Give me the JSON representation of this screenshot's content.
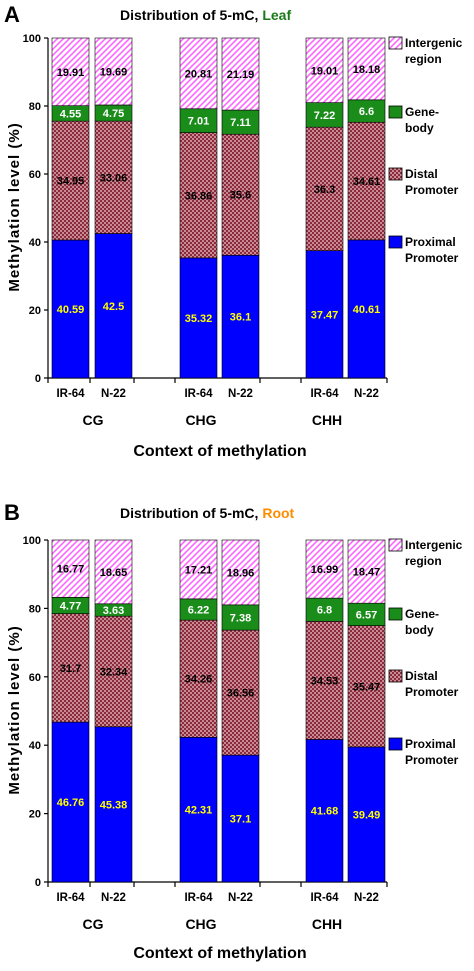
{
  "chart_data": [
    {
      "type": "bar",
      "panel": "A",
      "title_prefix": "Distribution of 5-mC, ",
      "title_tissue": "Leaf",
      "title_tissue_color": "#1a7a1a",
      "ylabel": "Methylation level (%)",
      "xlabel": "Context of methylation",
      "ylim": [
        0,
        100
      ],
      "yticks": [
        "0",
        "20",
        "40",
        "60",
        "80",
        "100"
      ],
      "contexts": [
        "CG",
        "CHG",
        "CHH"
      ],
      "categories": [
        "IR-64",
        "N-22",
        "IR-64",
        "N-22",
        "IR-64",
        "N-22"
      ],
      "series": [
        {
          "name": "Proximal Promoter",
          "values": [
            40.59,
            42.5,
            35.32,
            36.1,
            37.47,
            40.61
          ],
          "labels": [
            "40.59",
            "42.5",
            "35.32",
            "36.1",
            "37.47",
            "40.61"
          ]
        },
        {
          "name": "Distal Promoter",
          "values": [
            34.95,
            33.06,
            36.86,
            35.6,
            36.3,
            34.61
          ],
          "labels": [
            "34.95",
            "33.06",
            "36.86",
            "35.6",
            "36.3",
            "34.61"
          ]
        },
        {
          "name": "Gene-body",
          "values": [
            4.55,
            4.75,
            7.01,
            7.11,
            7.22,
            6.6
          ],
          "labels": [
            "4.55",
            "4.75",
            "7.01",
            "7.11",
            "7.22",
            "6.6"
          ]
        },
        {
          "name": "Intergenic region",
          "values": [
            19.91,
            19.69,
            20.81,
            21.19,
            19.01,
            18.18
          ],
          "labels": [
            "19.91",
            "19.69",
            "20.81",
            "21.19",
            "19.01",
            "18.18"
          ]
        }
      ],
      "legend": [
        {
          "key": "intergenic",
          "lines": [
            "Intergenic",
            "region"
          ]
        },
        {
          "key": "genebody",
          "lines": [
            "Gene-",
            "body"
          ]
        },
        {
          "key": "distal",
          "lines": [
            "Distal",
            "Promoter"
          ]
        },
        {
          "key": "proximal",
          "lines": [
            "Proximal",
            "Promoter"
          ]
        }
      ],
      "legend_placement": "right",
      "grid": false
    },
    {
      "type": "bar",
      "panel": "B",
      "title_prefix": "Distribution of 5-mC, ",
      "title_tissue": "Root",
      "title_tissue_color": "#ff8c00",
      "ylabel": "Methylation level (%)",
      "xlabel": "Context of methylation",
      "ylim": [
        0,
        100
      ],
      "yticks": [
        "0",
        "20",
        "40",
        "60",
        "80",
        "100"
      ],
      "contexts": [
        "CG",
        "CHG",
        "CHH"
      ],
      "categories": [
        "IR-64",
        "N-22",
        "IR-64",
        "N-22",
        "IR-64",
        "N-22"
      ],
      "series": [
        {
          "name": "Proximal Promoter",
          "values": [
            46.76,
            45.38,
            42.31,
            37.1,
            41.68,
            39.49
          ],
          "labels": [
            "46.76",
            "45.38",
            "42.31",
            "37.1",
            "41.68",
            "39.49"
          ]
        },
        {
          "name": "Distal Promoter",
          "values": [
            31.7,
            32.34,
            34.26,
            36.56,
            34.53,
            35.47
          ],
          "labels": [
            "31.7",
            "32.34",
            "34.26",
            "36.56",
            "34.53",
            "35.47"
          ]
        },
        {
          "name": "Gene-body",
          "values": [
            4.77,
            3.63,
            6.22,
            7.38,
            6.8,
            6.57
          ],
          "labels": [
            "4.77",
            "3.63",
            "6.22",
            "7.38",
            "6.8",
            "6.57"
          ]
        },
        {
          "name": "Intergenic region",
          "values": [
            16.77,
            18.65,
            17.21,
            18.96,
            16.99,
            18.47
          ],
          "labels": [
            "16.77",
            "18.65",
            "17.21",
            "18.96",
            "16.99",
            "18.47"
          ]
        }
      ],
      "legend": [
        {
          "key": "intergenic",
          "lines": [
            "Intergenic",
            "region"
          ]
        },
        {
          "key": "genebody",
          "lines": [
            "Gene-",
            "body"
          ]
        },
        {
          "key": "distal",
          "lines": [
            "Distal",
            "Promoter"
          ]
        },
        {
          "key": "proximal",
          "lines": [
            "Proximal",
            "Promoter"
          ]
        }
      ],
      "legend_placement": "right",
      "grid": false
    }
  ],
  "colors": {
    "proximal": "#0000ff",
    "proximal_label": "#ffff00",
    "distal": "#c0808a",
    "genebody": "#1a8c1a",
    "genebody_label": "#ffffff",
    "intergenic": "#ff66ff"
  }
}
